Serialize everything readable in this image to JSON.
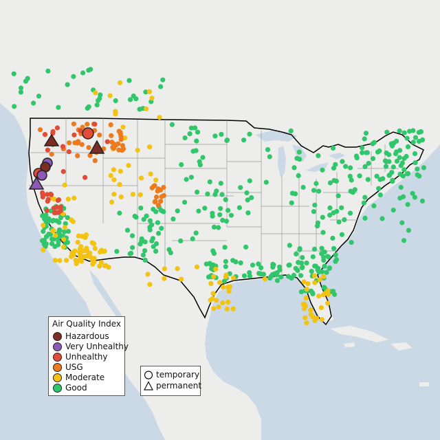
{
  "legend": {
    "title": "Air Quality Index",
    "categories": [
      {
        "label": "Hazardous",
        "color": "#7b2d26"
      },
      {
        "label": "Very Unhealthy",
        "color": "#8e58b5"
      },
      {
        "label": "Unhealthy",
        "color": "#e14b39"
      },
      {
        "label": "USG",
        "color": "#ec7b1f"
      },
      {
        "label": "Moderate",
        "color": "#f2c313"
      },
      {
        "label": "Good",
        "color": "#31c66b"
      }
    ]
  },
  "type_legend": {
    "temporary": "temporary",
    "permanent": "permanent"
  },
  "colors": {
    "water": "#cbd9e6",
    "land": "#ededeb",
    "outline": "#000000",
    "state_lines": "#9a9a9a"
  }
}
